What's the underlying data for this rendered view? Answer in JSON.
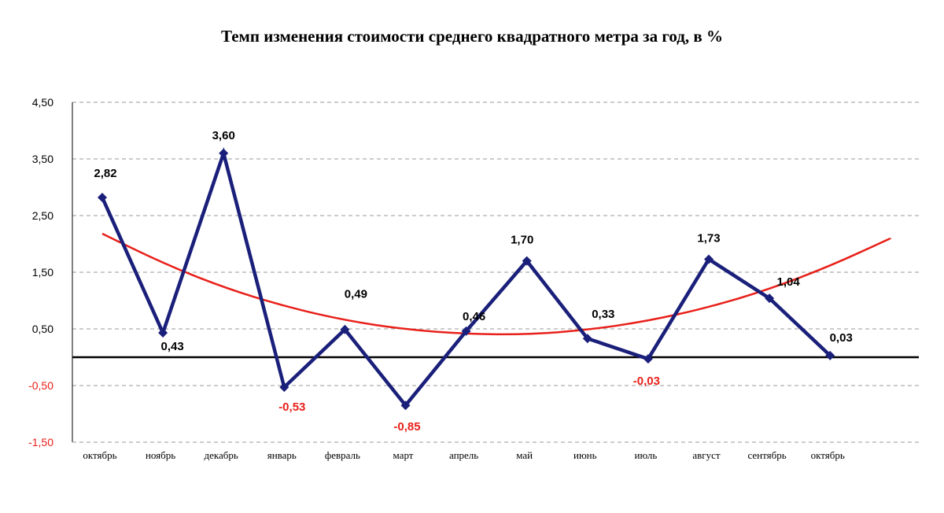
{
  "chart_data": {
    "type": "line",
    "title": "Темп изменения стоимости среднего квадратного метра за год, в %",
    "categories": [
      "октябрь",
      "ноябрь",
      "декабрь",
      "январь",
      "февраль",
      "март",
      "апрель",
      "май",
      "июнь",
      "июль",
      "август",
      "сентябрь",
      "октябрь"
    ],
    "series": [
      {
        "values": [
          2.82,
          0.43,
          3.6,
          -0.53,
          0.49,
          -0.85,
          0.46,
          1.7,
          0.33,
          -0.03,
          1.73,
          1.04,
          0.03
        ],
        "labels": [
          "2,82",
          "0,43",
          "3,60",
          "-0,53",
          "0,49",
          "-0,85",
          "0,46",
          "1,70",
          "0,33",
          "-0,03",
          "1,73",
          "1,04",
          "0,03"
        ],
        "color": "#1a1f7a",
        "marker": "diamond"
      }
    ],
    "trendline": {
      "type": "polynomial",
      "color": "#e8201a",
      "values": [
        2.18,
        1.66,
        1.23,
        0.9,
        0.65,
        0.49,
        0.41,
        0.4,
        0.48,
        0.64,
        0.88,
        1.2,
        1.61,
        2.1
      ]
    },
    "ylim": [
      -1.5,
      4.5
    ],
    "yticks": [
      "4,50",
      "3,50",
      "2,50",
      "1,50",
      "0,50",
      "-0,50",
      "-1,50"
    ],
    "ytick_values": [
      4.5,
      3.5,
      2.5,
      1.5,
      0.5,
      -0.5,
      -1.5
    ],
    "grid": true,
    "legend": "none",
    "negative_color": "#e8201a",
    "axis_color": "#000000",
    "grid_color": "#999999"
  }
}
